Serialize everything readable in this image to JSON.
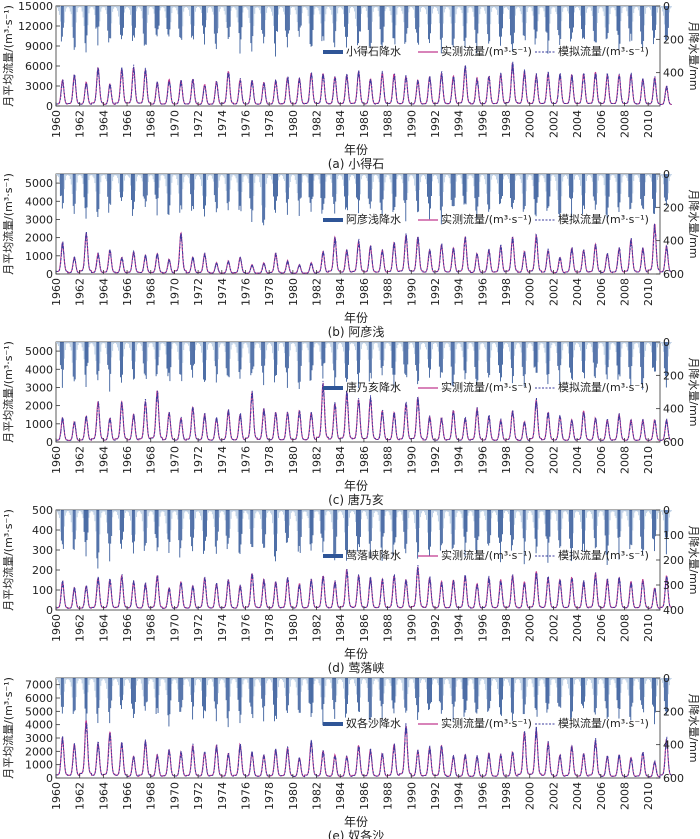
{
  "figure": {
    "x_label": "年份",
    "year_ticks": [
      "1960",
      "1962",
      "1964",
      "1966",
      "1968",
      "1970",
      "1972",
      "1974",
      "1976",
      "1978",
      "1980",
      "1982",
      "1984",
      "1986",
      "1988",
      "1990",
      "1992",
      "1994",
      "1996",
      "1998",
      "2000",
      "2002",
      "2004",
      "2006",
      "2008",
      "2010"
    ],
    "left_axis_label": "月平均流量/(m³·s⁻¹)",
    "right_axis_label": "月降水量/mm",
    "legend_observed": "实测流量/(m³·s⁻¹)",
    "legend_simulated": "模拟流量/(m³·s⁻¹)",
    "colors": {
      "precip_dark": "#2f5597",
      "precip_light": "#b7cbe3",
      "observed": "#c0398f",
      "simulated": "#3b3b9e"
    }
  },
  "chart_data": [
    {
      "type": "line",
      "caption": "(a) 小得石",
      "precip_legend": "小得石降水",
      "x_range": [
        1960,
        2011
      ],
      "y_left": {
        "range": [
          0,
          15000
        ],
        "ticks": [
          0,
          3000,
          6000,
          9000,
          12000,
          15000
        ]
      },
      "y_right": {
        "range": [
          0,
          600
        ],
        "ticks": [
          0,
          200,
          400
        ],
        "reversed": true
      },
      "flow_peaks": [
        3800,
        4600,
        3500,
        5700,
        3200,
        5500,
        5800,
        5400,
        3500,
        3900,
        3700,
        4000,
        3200,
        3600,
        5200,
        3900,
        3800,
        3500,
        3800,
        4300,
        4100,
        4900,
        4800,
        4300,
        4600,
        5100,
        4000,
        4900,
        4800,
        4400,
        3800,
        4300,
        4800,
        4400,
        5800,
        4100,
        4400,
        4700,
        6300,
        5100,
        4600,
        4800,
        4700,
        4600,
        4800,
        5000,
        4600,
        4600,
        4700,
        4000,
        4200,
        2900
      ],
      "precip_peaks": [
        210,
        250,
        230,
        200,
        240,
        220,
        215,
        260,
        195,
        230,
        240,
        225,
        210,
        245,
        200,
        230,
        240,
        220,
        250,
        235,
        210,
        240,
        225,
        230,
        215,
        250,
        230,
        220,
        240,
        225,
        235,
        210,
        245,
        230,
        220,
        240,
        215,
        225,
        260,
        210,
        240,
        230,
        235,
        220,
        245,
        225,
        240,
        230,
        215,
        235,
        230,
        225
      ],
      "series": [
        {
          "name": "实测流量/(m³·s⁻¹)",
          "role": "observed"
        },
        {
          "name": "模拟流量/(m³·s⁻¹)",
          "role": "simulated"
        },
        {
          "name": "小得石降水",
          "role": "precipitation"
        }
      ]
    },
    {
      "type": "line",
      "caption": "(b) 阿彦浅",
      "precip_legend": "阿彦浅降水",
      "x_range": [
        1960,
        2011
      ],
      "y_left": {
        "range": [
          0,
          5500
        ],
        "ticks": [
          0,
          1000,
          2000,
          3000,
          4000,
          5000
        ]
      },
      "y_right": {
        "range": [
          0,
          600
        ],
        "ticks": [
          0,
          200,
          400,
          600
        ],
        "reversed": true
      },
      "flow_peaks": [
        1700,
        900,
        2200,
        1100,
        1300,
        900,
        1200,
        1000,
        1100,
        800,
        2200,
        900,
        1100,
        600,
        700,
        900,
        500,
        600,
        1100,
        700,
        500,
        600,
        1200,
        2000,
        1300,
        1800,
        1500,
        1300,
        1700,
        2100,
        2000,
        1300,
        1600,
        1400,
        2000,
        1100,
        1300,
        1500,
        2000,
        1200,
        2100,
        1300,
        900,
        1400,
        1300,
        1600,
        1100,
        1400,
        1900,
        1400,
        2700,
        1500
      ],
      "precip_peaks": [
        200,
        240,
        220,
        250,
        230,
        210,
        245,
        225,
        215,
        240,
        230,
        220,
        250,
        210,
        235,
        225,
        240,
        380,
        230,
        215,
        245,
        225,
        235,
        220,
        240,
        230,
        215,
        250,
        225,
        240,
        230,
        220,
        245,
        235,
        210,
        240,
        230,
        225,
        250,
        215,
        240,
        230,
        320,
        225,
        245,
        220,
        240,
        230,
        215,
        235,
        230,
        240
      ],
      "series": [
        {
          "name": "实测流量/(m³·s⁻¹)",
          "role": "observed"
        },
        {
          "name": "模拟流量/(m³·s⁻¹)",
          "role": "simulated"
        },
        {
          "name": "阿彦浅降水",
          "role": "precipitation"
        }
      ]
    },
    {
      "type": "line",
      "caption": "(c) 唐乃亥",
      "precip_legend": "唐乃亥降水",
      "x_range": [
        1960,
        2011
      ],
      "y_left": {
        "range": [
          0,
          5500
        ],
        "ticks": [
          0,
          1000,
          2000,
          3000,
          4000,
          5000
        ]
      },
      "y_right": {
        "range": [
          0,
          600
        ],
        "ticks": [
          0,
          200,
          400,
          600
        ],
        "reversed": true
      },
      "flow_peaks": [
        1300,
        1100,
        1400,
        2200,
        1300,
        2200,
        1500,
        2200,
        2800,
        1600,
        1300,
        1900,
        1500,
        1300,
        1700,
        1500,
        2700,
        1800,
        1600,
        1600,
        1700,
        1600,
        3200,
        2100,
        2700,
        2300,
        2400,
        1700,
        1600,
        2100,
        2400,
        1400,
        1300,
        1700,
        1300,
        1800,
        1400,
        1200,
        1700,
        1100,
        2300,
        1600,
        1400,
        1200,
        1700,
        1300,
        1200,
        1500,
        1200,
        1200,
        1200,
        1200
      ],
      "precip_peaks": [
        230,
        250,
        220,
        260,
        240,
        215,
        250,
        230,
        220,
        245,
        235,
        225,
        255,
        215,
        240,
        230,
        245,
        235,
        250,
        225,
        240,
        230,
        215,
        250,
        235,
        240,
        225,
        230,
        245,
        220,
        240,
        235,
        225,
        250,
        215,
        245,
        230,
        235,
        220,
        240,
        230,
        245,
        225,
        235,
        240,
        220,
        250,
        230,
        225,
        240,
        235,
        230
      ],
      "series": [
        {
          "name": "实测流量/(m³·s⁻¹)",
          "role": "observed"
        },
        {
          "name": "模拟流量/(m³·s⁻¹)",
          "role": "simulated"
        },
        {
          "name": "唐乃亥降水",
          "role": "precipitation"
        }
      ]
    },
    {
      "type": "line",
      "caption": "(d) 莺落峡",
      "precip_legend": "莺落峡降水",
      "x_range": [
        1960,
        2011
      ],
      "y_left": {
        "range": [
          0,
          500
        ],
        "ticks": [
          0,
          100,
          200,
          300,
          400,
          500
        ]
      },
      "y_right": {
        "range": [
          0,
          400
        ],
        "ticks": [
          0,
          100,
          200,
          300,
          400
        ],
        "reversed": true
      },
      "flow_peaks": [
        140,
        110,
        120,
        160,
        150,
        170,
        140,
        130,
        170,
        110,
        140,
        120,
        160,
        130,
        150,
        120,
        180,
        150,
        140,
        160,
        130,
        150,
        170,
        140,
        200,
        170,
        160,
        150,
        170,
        150,
        210,
        160,
        140,
        150,
        170,
        130,
        160,
        150,
        170,
        140,
        190,
        160,
        150,
        160,
        140,
        180,
        150,
        160,
        140,
        150,
        110,
        170
      ],
      "precip_peaks": [
        160,
        180,
        150,
        190,
        170,
        155,
        185,
        165,
        150,
        175,
        180,
        160,
        190,
        150,
        170,
        165,
        180,
        170,
        185,
        160,
        175,
        165,
        150,
        185,
        170,
        175,
        160,
        165,
        180,
        155,
        175,
        170,
        160,
        185,
        150,
        180,
        165,
        170,
        155,
        175,
        165,
        180,
        160,
        170,
        175,
        155,
        185,
        165,
        160,
        175,
        170,
        165
      ],
      "series": [
        {
          "name": "实测流量/(m³·s⁻¹)",
          "role": "observed"
        },
        {
          "name": "模拟流量/(m³·s⁻¹)",
          "role": "simulated"
        },
        {
          "name": "莺落峡降水",
          "role": "precipitation"
        }
      ]
    },
    {
      "type": "line",
      "caption": "(e) 奴各沙",
      "precip_legend": "奴各沙降水",
      "x_range": [
        1960,
        2011
      ],
      "y_left": {
        "range": [
          0,
          7500
        ],
        "ticks": [
          0,
          1000,
          2000,
          3000,
          4000,
          5000,
          6000,
          7000
        ]
      },
      "y_right": {
        "range": [
          0,
          600
        ],
        "ticks": [
          0,
          200,
          400,
          600
        ],
        "reversed": true
      },
      "flow_peaks": [
        3000,
        2500,
        4300,
        2600,
        3400,
        2600,
        1600,
        2700,
        1700,
        2100,
        1900,
        2400,
        1900,
        2400,
        1800,
        2500,
        1900,
        1700,
        2100,
        2200,
        1500,
        2700,
        2000,
        1700,
        1600,
        2400,
        2100,
        1800,
        2500,
        3900,
        2000,
        2300,
        2400,
        1600,
        1700,
        1600,
        1800,
        1700,
        1900,
        3500,
        3600,
        2600,
        1700,
        2400,
        1800,
        2800,
        1600,
        1700,
        1500,
        1900,
        1200,
        2900
      ],
      "precip_peaks": [
        210,
        240,
        225,
        250,
        230,
        215,
        245,
        230,
        220,
        240,
        235,
        225,
        250,
        215,
        240,
        230,
        245,
        220,
        250,
        235,
        215,
        240,
        230,
        225,
        245,
        220,
        240,
        235,
        230,
        250,
        215,
        245,
        225,
        240,
        220,
        235,
        245,
        230,
        215,
        250,
        240,
        230,
        225,
        245,
        235,
        220,
        250,
        230,
        240,
        225,
        235,
        230
      ],
      "series": [
        {
          "name": "实测流量/(m³·s⁻¹)",
          "role": "observed"
        },
        {
          "name": "模拟流量/(m³·s⁻¹)",
          "role": "simulated"
        },
        {
          "name": "奴各沙降水",
          "role": "precipitation"
        }
      ]
    }
  ]
}
